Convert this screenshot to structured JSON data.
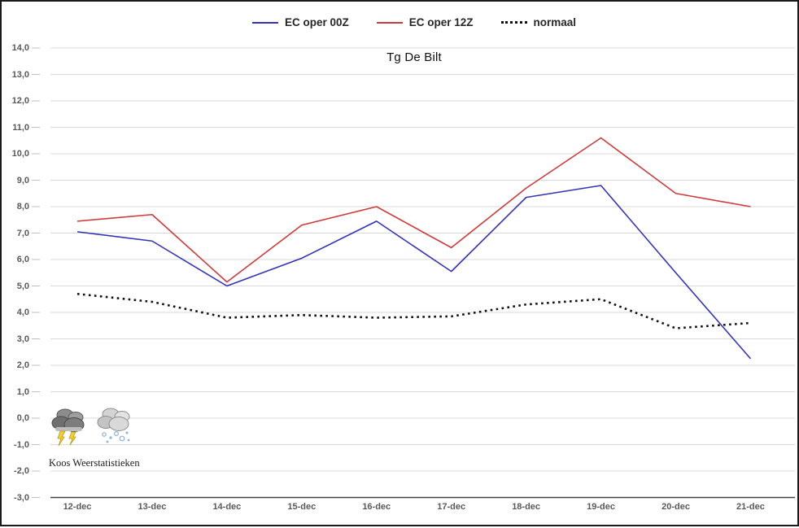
{
  "window": {
    "background": "#ffffff",
    "border_color": "#1a1a1a"
  },
  "legend": {
    "items": [
      {
        "label": "EC oper 00Z",
        "color": "#3333b3",
        "style": "solid"
      },
      {
        "label": "EC oper 12Z",
        "color": "#cc3b3b",
        "style": "solid"
      },
      {
        "label": "normaal",
        "color": "#111111",
        "style": "dotted"
      }
    ]
  },
  "watermark": {
    "text": "Koos Weerstatistieken",
    "icons": [
      "storm-cloud-icon",
      "snow-cloud-icon"
    ]
  },
  "chart_data": {
    "type": "line",
    "title": "Tg De Bilt",
    "xlabel": "",
    "ylabel": "",
    "categories": [
      "12-dec",
      "13-dec",
      "14-dec",
      "15-dec",
      "16-dec",
      "17-dec",
      "18-dec",
      "19-dec",
      "20-dec",
      "21-dec"
    ],
    "series": [
      {
        "name": "EC oper 00Z",
        "color": "#3333b3",
        "style": "solid",
        "values": [
          7.05,
          6.7,
          5.0,
          6.05,
          7.45,
          5.55,
          8.35,
          8.8,
          5.5,
          2.25
        ]
      },
      {
        "name": "EC oper 12Z",
        "color": "#cc3b3b",
        "style": "solid",
        "values": [
          7.45,
          7.7,
          5.15,
          7.3,
          8.0,
          6.45,
          8.7,
          10.6,
          8.5,
          8.0
        ]
      },
      {
        "name": "normaal",
        "color": "#111111",
        "style": "dotted",
        "values": [
          4.7,
          4.4,
          3.8,
          3.9,
          3.8,
          3.85,
          4.3,
          4.5,
          3.4,
          3.6
        ]
      }
    ],
    "y_ticks": [
      "14,0",
      "13,0",
      "12,0",
      "11,0",
      "10,0",
      "9,0",
      "8,0",
      "7,0",
      "6,0",
      "5,0",
      "4,0",
      "3,0",
      "2,0",
      "1,0",
      "0,0",
      "-1,0",
      "-2,0",
      "-3,0"
    ],
    "ylim": [
      -3,
      14
    ],
    "y_step": 1,
    "grid": true,
    "gridline_color": "#d9d9d9",
    "axis_line_color": "#404040",
    "legend_position": "top-center"
  }
}
